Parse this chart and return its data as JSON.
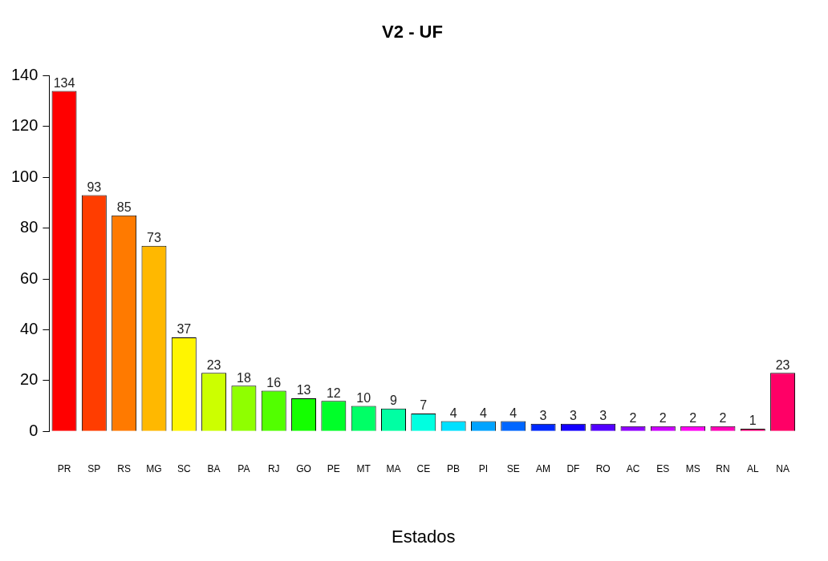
{
  "chart_data": {
    "type": "bar",
    "title": "V2 - UF",
    "xlabel": "Estados",
    "categories": [
      "PR",
      "SP",
      "RS",
      "MG",
      "SC",
      "BA",
      "PA",
      "RJ",
      "GO",
      "PE",
      "MT",
      "MA",
      "CE",
      "PB",
      "PI",
      "SE",
      "AM",
      "DF",
      "RO",
      "AC",
      "ES",
      "MS",
      "RN",
      "AL",
      "NA"
    ],
    "values": [
      134,
      93,
      85,
      73,
      37,
      23,
      18,
      16,
      13,
      12,
      10,
      9,
      7,
      4,
      4,
      4,
      3,
      3,
      3,
      2,
      2,
      2,
      2,
      1,
      23
    ],
    "colors": [
      "#ff0000",
      "#ff3d00",
      "#ff7a00",
      "#ffb800",
      "#fff500",
      "#ccff00",
      "#8fff00",
      "#52ff00",
      "#14ff00",
      "#00ff29",
      "#00ff66",
      "#00ffa3",
      "#00ffe0",
      "#00e0ff",
      "#00a3ff",
      "#0066ff",
      "#0029ff",
      "#1400ff",
      "#5200ff",
      "#8f00ff",
      "#cc00ff",
      "#ff00f5",
      "#ff00b8",
      "#ff007a",
      "#ff0066"
    ],
    "ylim": [
      0,
      140
    ],
    "yticks": [
      0,
      20,
      40,
      60,
      80,
      100,
      120,
      140
    ],
    "data_labels": true,
    "grid": false,
    "legend": false
  }
}
